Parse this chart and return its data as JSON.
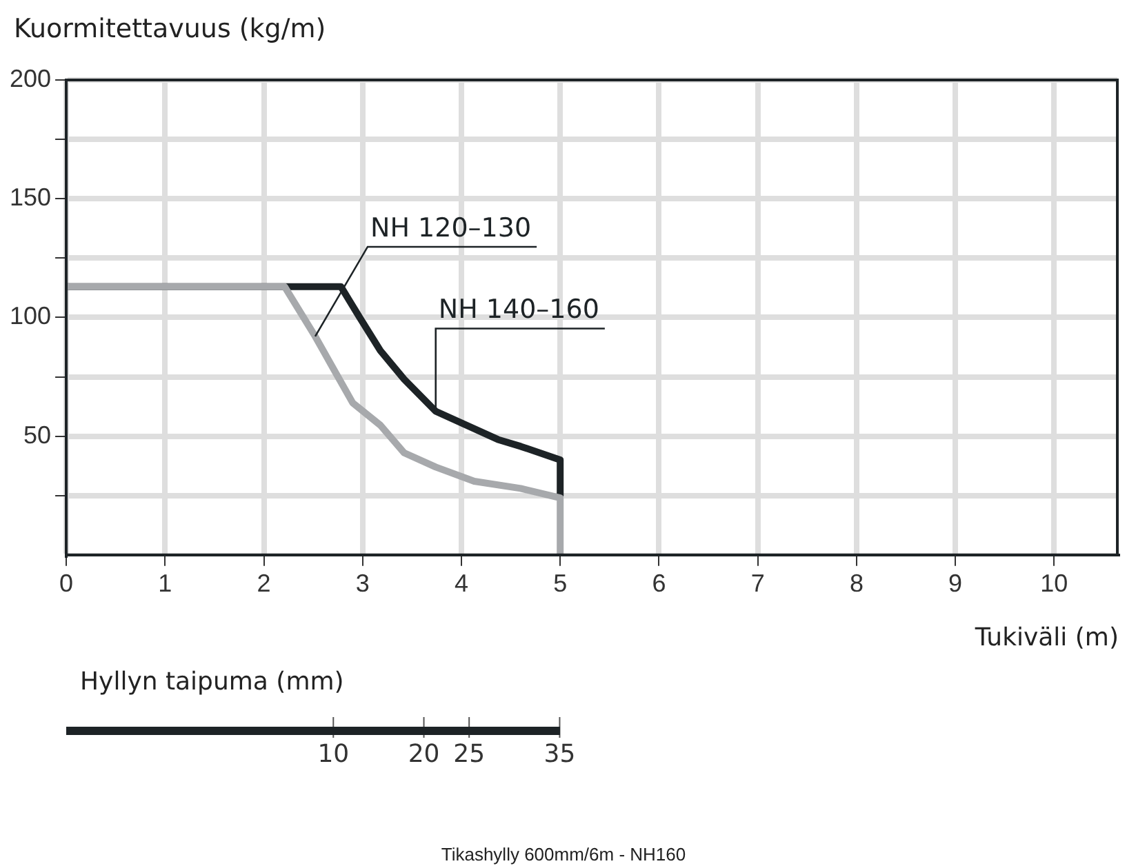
{
  "chart_data": {
    "type": "line",
    "ylabel": "Kuormitettavuus (kg/m)",
    "xlabel": "Tukiväli (m)",
    "x2label": "Hyllyn taipuma (mm)",
    "xlim": [
      0,
      10.64
    ],
    "xticks": [
      0,
      1,
      2,
      3,
      4,
      5,
      6,
      7,
      8,
      9,
      10
    ],
    "ylim": [
      0,
      200
    ],
    "yticks": [
      {
        "value": 25,
        "label": null
      },
      50,
      {
        "value": 75,
        "label": null
      },
      100,
      {
        "value": 125,
        "label": null
      },
      150,
      {
        "value": 175,
        "label": null
      },
      200
    ],
    "x2lim": [
      -19.5,
      96.6
    ],
    "x2ticks": [
      10,
      20,
      25,
      35
    ],
    "grid": true,
    "legend": false,
    "marker": "none",
    "line_style": "solid",
    "series": [
      {
        "name": "NH 120–130",
        "color": "#a7a9ac",
        "x": [
          0,
          2.21,
          2.52,
          2.71,
          2.9,
          3.18,
          3.42,
          3.74,
          4.13,
          4.6,
          5,
          5
        ],
        "values": [
          113,
          113,
          92,
          78,
          64,
          54.6,
          43,
          37,
          31,
          28,
          24,
          0
        ]
      },
      {
        "name": "NH 140–160",
        "color": "#1d2326",
        "x": [
          0,
          2.78,
          2.97,
          3.18,
          3.42,
          3.74,
          4.37,
          4.6,
          5,
          5
        ],
        "values": [
          113,
          113,
          100,
          86,
          74,
          60.5,
          48.6,
          45.7,
          40,
          25
        ]
      }
    ],
    "annotations": [
      "Tikashylly 600mm/6m - NH160"
    ]
  }
}
